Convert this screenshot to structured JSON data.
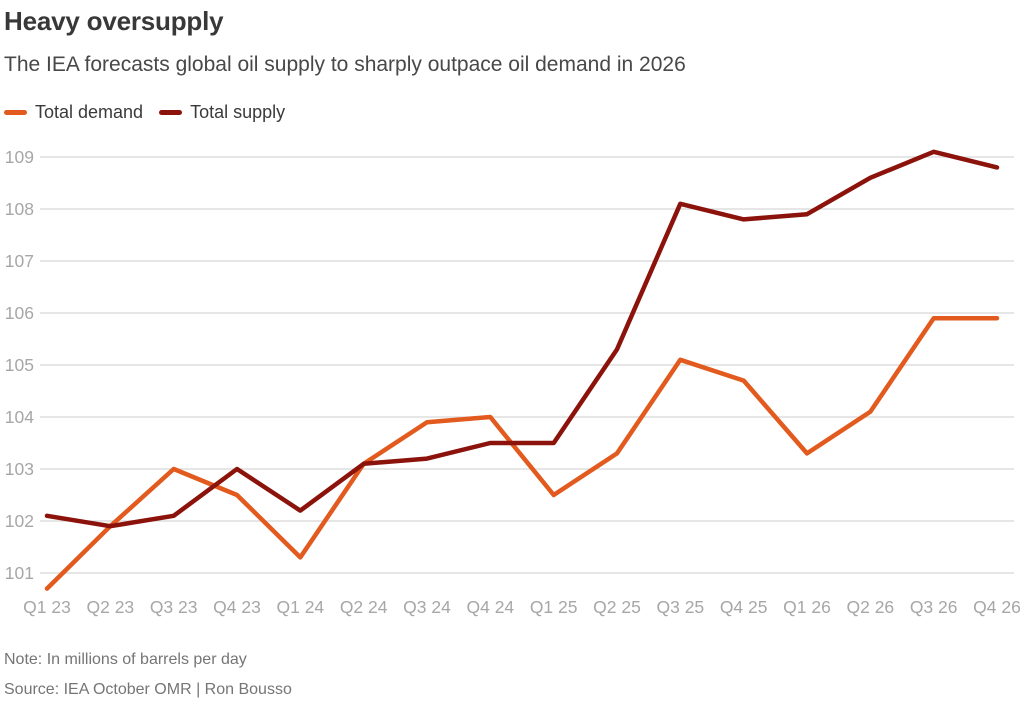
{
  "header": {
    "title": "Heavy oversupply",
    "subtitle": "The IEA forecasts global oil supply to sharply outpace oil demand in 2026"
  },
  "footer": {
    "note": "Note: In millions of barrels per day",
    "source": "Source: IEA October OMR | Ron Bousso"
  },
  "colors": {
    "demand": "#E25A1E",
    "supply": "#8B130B",
    "gridline": "#D6D6D6",
    "axis_label": "#A7A7A7"
  },
  "chart_data": {
    "type": "line",
    "title": "Heavy oversupply",
    "subtitle": "The IEA forecasts global oil supply to sharply outpace oil demand in 2026",
    "unit_note": "millions of barrels per day",
    "categories": [
      "Q1 23",
      "Q2 23",
      "Q3 23",
      "Q4 23",
      "Q1 24",
      "Q2 24",
      "Q3 24",
      "Q4 24",
      "Q1 25",
      "Q2 25",
      "Q3 25",
      "Q4 25",
      "Q1 26",
      "Q2 26",
      "Q3 26",
      "Q4 26"
    ],
    "series": [
      {
        "name": "Total demand",
        "color": "#E25A1E",
        "values": [
          100.7,
          101.9,
          103.0,
          102.5,
          101.3,
          103.1,
          103.9,
          104.0,
          102.5,
          103.3,
          105.1,
          104.7,
          103.3,
          104.1,
          105.9,
          105.9
        ]
      },
      {
        "name": "Total supply",
        "color": "#8B130B",
        "values": [
          102.1,
          101.9,
          102.1,
          103.0,
          102.2,
          103.1,
          103.2,
          103.5,
          103.5,
          105.3,
          108.1,
          107.8,
          107.9,
          108.6,
          109.1,
          108.8
        ]
      }
    ],
    "y_ticks": [
      101,
      102,
      103,
      104,
      105,
      106,
      107,
      108,
      109
    ],
    "ylim": [
      100.6,
      109.3
    ],
    "grid": "horizontal",
    "legend_position": "top-left"
  }
}
